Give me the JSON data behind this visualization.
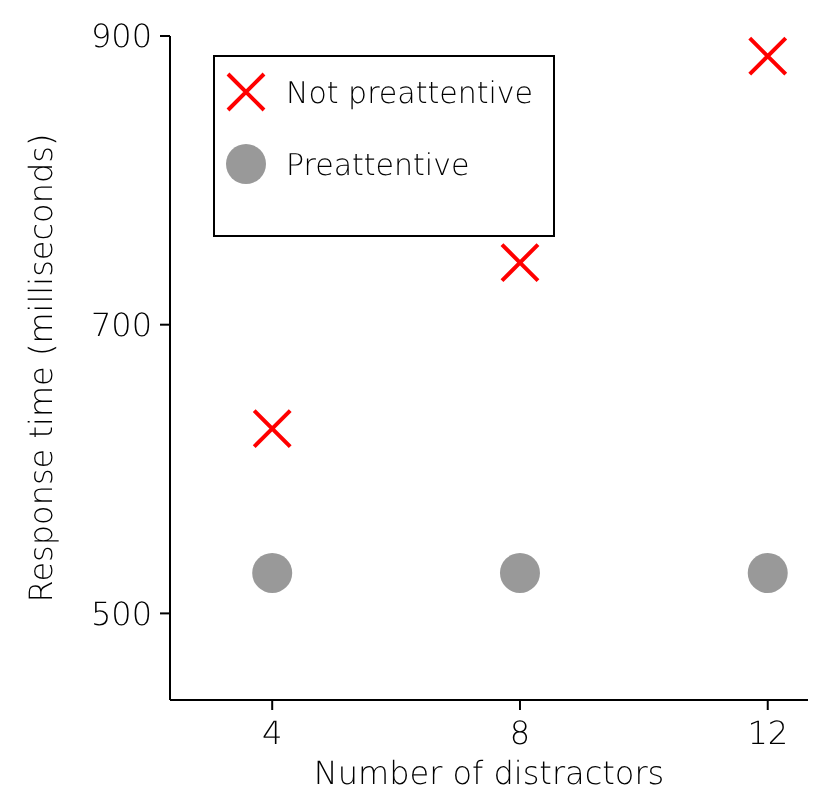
{
  "chart_data": {
    "type": "scatter",
    "xlabel": "Number of distractors",
    "ylabel": "Response time (milliseconds)",
    "x": [
      4,
      8,
      12
    ],
    "series": [
      {
        "name": "Not preattentive",
        "color": "#ff0000",
        "marker": "cross",
        "values": [
          628,
          743,
          886
        ]
      },
      {
        "name": "Preattentive",
        "color": "#999999",
        "marker": "circle",
        "values": [
          528,
          528,
          528
        ]
      }
    ],
    "xlim": [
      2.35,
      12.65
    ],
    "ylim": [
      440,
      900
    ],
    "xticks": [
      4,
      8,
      12
    ],
    "yticks": [
      500,
      700,
      900
    ],
    "legend": "top left",
    "grid": false
  }
}
